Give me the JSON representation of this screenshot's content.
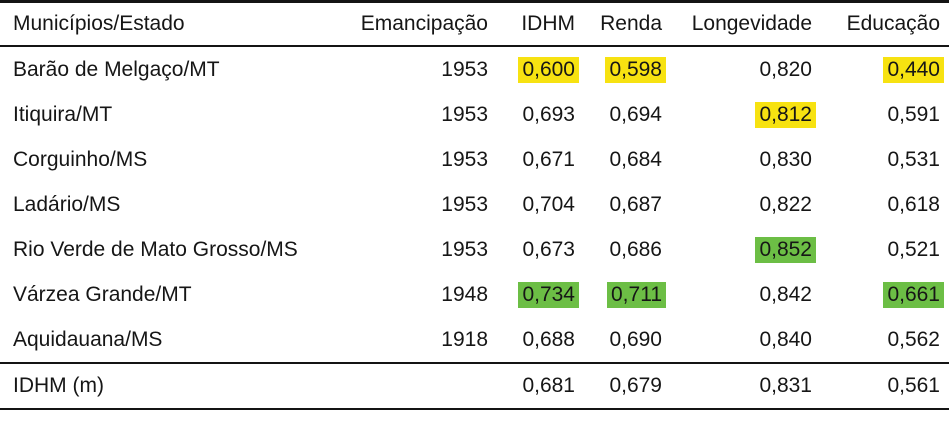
{
  "highlights": {
    "yellow": "#f7e211",
    "green": "#6cbe45"
  },
  "table": {
    "columns": [
      {
        "label": "Municípios/Estado"
      },
      {
        "label": "Emancipação"
      },
      {
        "label": "IDHM"
      },
      {
        "label": "Renda"
      },
      {
        "label": "Longevidade"
      },
      {
        "label": "Educação"
      }
    ],
    "rows": [
      {
        "cells": [
          {
            "text": "Barão de Melgaço/MT"
          },
          {
            "text": "1953"
          },
          {
            "text": "0,600",
            "hl": "yellow"
          },
          {
            "text": "0,598",
            "hl": "yellow"
          },
          {
            "text": "0,820"
          },
          {
            "text": "0,440",
            "hl": "yellow"
          }
        ]
      },
      {
        "cells": [
          {
            "text": "Itiquira/MT"
          },
          {
            "text": "1953"
          },
          {
            "text": "0,693"
          },
          {
            "text": "0,694"
          },
          {
            "text": "0,812",
            "hl": "yellow"
          },
          {
            "text": "0,591"
          }
        ]
      },
      {
        "cells": [
          {
            "text": "Corguinho/MS"
          },
          {
            "text": "1953"
          },
          {
            "text": "0,671"
          },
          {
            "text": "0,684"
          },
          {
            "text": "0,830"
          },
          {
            "text": "0,531"
          }
        ]
      },
      {
        "cells": [
          {
            "text": "Ladário/MS"
          },
          {
            "text": "1953"
          },
          {
            "text": "0,704"
          },
          {
            "text": "0,687"
          },
          {
            "text": "0,822"
          },
          {
            "text": "0,618"
          }
        ]
      },
      {
        "cells": [
          {
            "text": "Rio Verde de Mato Grosso/MS"
          },
          {
            "text": "1953"
          },
          {
            "text": "0,673"
          },
          {
            "text": "0,686"
          },
          {
            "text": "0,852",
            "hl": "green"
          },
          {
            "text": "0,521"
          }
        ]
      },
      {
        "cells": [
          {
            "text": "Várzea Grande/MT"
          },
          {
            "text": "1948"
          },
          {
            "text": "0,734",
            "hl": "green"
          },
          {
            "text": "0,711",
            "hl": "green"
          },
          {
            "text": "0,842"
          },
          {
            "text": "0,661",
            "hl": "green"
          }
        ]
      },
      {
        "cells": [
          {
            "text": "Aquidauana/MS"
          },
          {
            "text": "1918"
          },
          {
            "text": "0,688"
          },
          {
            "text": "0,690"
          },
          {
            "text": "0,840"
          },
          {
            "text": "0,562"
          }
        ]
      }
    ],
    "footer": {
      "cells": [
        {
          "text": "IDHM (m)"
        },
        {
          "text": ""
        },
        {
          "text": "0,681"
        },
        {
          "text": "0,679"
        },
        {
          "text": "0,831"
        },
        {
          "text": "0,561"
        }
      ]
    }
  }
}
